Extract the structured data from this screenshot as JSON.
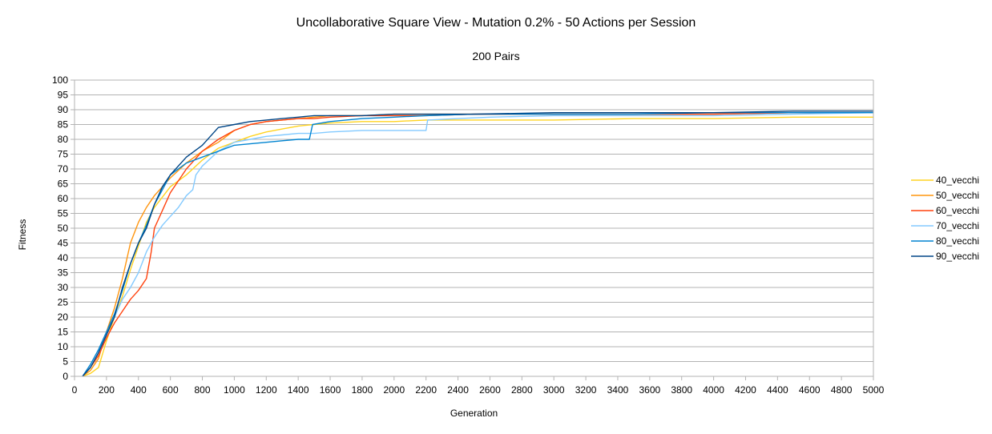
{
  "chart_data": {
    "type": "line",
    "title": "Uncollaborative Square View - Mutation 0.2% - 50 Actions per Session",
    "subtitle": "200 Pairs",
    "xlabel": "Generation",
    "ylabel": "Fitness",
    "xlim": [
      0,
      5000
    ],
    "ylim": [
      0,
      100
    ],
    "xticks": [
      0,
      200,
      400,
      600,
      800,
      1000,
      1200,
      1400,
      1600,
      1800,
      2000,
      2200,
      2400,
      2600,
      2800,
      3000,
      3200,
      3400,
      3600,
      3800,
      4000,
      4200,
      4400,
      4600,
      4800,
      5000
    ],
    "yticks": [
      0,
      5,
      10,
      15,
      20,
      25,
      30,
      35,
      40,
      45,
      50,
      55,
      60,
      65,
      70,
      75,
      80,
      85,
      90,
      95,
      100
    ],
    "grid": true,
    "legend_position": "right",
    "series": [
      {
        "name": "40_vecchi",
        "color": "#ffd320",
        "x": [
          50,
          100,
          150,
          200,
          250,
          300,
          350,
          400,
          450,
          500,
          600,
          700,
          800,
          900,
          1000,
          1100,
          1200,
          1300,
          1400,
          1500,
          1600,
          1800,
          2000,
          2200,
          2500,
          3000,
          3500,
          4000,
          4500,
          5000
        ],
        "y": [
          0,
          1,
          3,
          12,
          20,
          27,
          36,
          44,
          52,
          57,
          64,
          68,
          73,
          77,
          79,
          81,
          82.5,
          83.5,
          84.5,
          85,
          85.5,
          86,
          86,
          86.5,
          86.5,
          86.5,
          87,
          87,
          87.5,
          87.5
        ]
      },
      {
        "name": "50_vecchi",
        "color": "#ff950e",
        "x": [
          50,
          100,
          150,
          200,
          250,
          300,
          350,
          400,
          450,
          500,
          600,
          700,
          800,
          900,
          1000,
          1100,
          1200,
          1300,
          1400,
          1500,
          1600,
          1800,
          2000,
          2200,
          2500,
          3000,
          3500,
          4000,
          4500,
          5000
        ],
        "y": [
          0,
          2,
          6,
          15,
          23,
          33,
          45,
          52,
          57,
          61,
          67,
          72,
          76,
          79,
          83,
          85,
          86,
          86.5,
          87,
          87.5,
          88,
          88,
          88.5,
          88.5,
          88.5,
          88.5,
          88.5,
          88.5,
          89,
          89
        ]
      },
      {
        "name": "60_vecchi",
        "color": "#ff420e",
        "x": [
          50,
          100,
          150,
          200,
          250,
          300,
          350,
          400,
          450,
          480,
          500,
          550,
          600,
          700,
          800,
          900,
          1000,
          1100,
          1200,
          1300,
          1400,
          1500,
          1600,
          1800,
          2000,
          2200,
          2500,
          3000,
          3500,
          4000,
          4500,
          5000
        ],
        "y": [
          0,
          3,
          7,
          13,
          18,
          22,
          26,
          29,
          33,
          42,
          50,
          56,
          62,
          70,
          76,
          80,
          83,
          85,
          86,
          86.5,
          87,
          87,
          87.5,
          88,
          88,
          88,
          88.5,
          88.5,
          88.5,
          88.5,
          89,
          89
        ]
      },
      {
        "name": "70_vecchi",
        "color": "#83caff",
        "x": [
          50,
          100,
          150,
          200,
          250,
          300,
          350,
          400,
          450,
          500,
          550,
          600,
          650,
          700,
          740,
          760,
          800,
          900,
          1000,
          1100,
          1200,
          1300,
          1400,
          1500,
          1600,
          1800,
          2000,
          2200,
          2210,
          2400,
          2600,
          3000,
          3500,
          4000,
          4500,
          5000
        ],
        "y": [
          0,
          3,
          8,
          14,
          20,
          26,
          30,
          35,
          42,
          47,
          51,
          54,
          57,
          61,
          63,
          68,
          71,
          76,
          79,
          80,
          81,
          81.5,
          82,
          82,
          82.5,
          83,
          83,
          83,
          86.5,
          87,
          87.5,
          88,
          88,
          88,
          88.5,
          89
        ]
      },
      {
        "name": "80_vecchi",
        "color": "#0084d1",
        "x": [
          50,
          100,
          150,
          200,
          250,
          300,
          350,
          400,
          450,
          500,
          550,
          600,
          700,
          800,
          900,
          1000,
          1100,
          1200,
          1300,
          1400,
          1470,
          1490,
          1600,
          1800,
          2000,
          2200,
          2500,
          3000,
          3500,
          4000,
          4500,
          5000
        ],
        "y": [
          0,
          4,
          9,
          15,
          21,
          29,
          38,
          45,
          51,
          58,
          63,
          68,
          72,
          74,
          76,
          78,
          78.5,
          79,
          79.5,
          80,
          80,
          85,
          86,
          87,
          87.5,
          88,
          88.5,
          88.5,
          88.5,
          89,
          89,
          89
        ]
      },
      {
        "name": "90_vecchi",
        "color": "#004586",
        "x": [
          50,
          100,
          150,
          200,
          250,
          300,
          350,
          400,
          450,
          500,
          550,
          600,
          700,
          800,
          850,
          900,
          1000,
          1100,
          1200,
          1300,
          1400,
          1500,
          1600,
          1800,
          2000,
          2200,
          2500,
          3000,
          3500,
          4000,
          4500,
          5000
        ],
        "y": [
          0,
          3,
          8,
          14,
          20,
          30,
          38,
          45,
          50,
          58,
          64,
          68,
          74,
          78,
          81,
          84,
          85,
          86,
          86.5,
          87,
          87.5,
          88,
          88,
          88,
          88.5,
          88.5,
          88.5,
          89,
          89,
          89,
          89.5,
          89.5
        ]
      }
    ]
  }
}
